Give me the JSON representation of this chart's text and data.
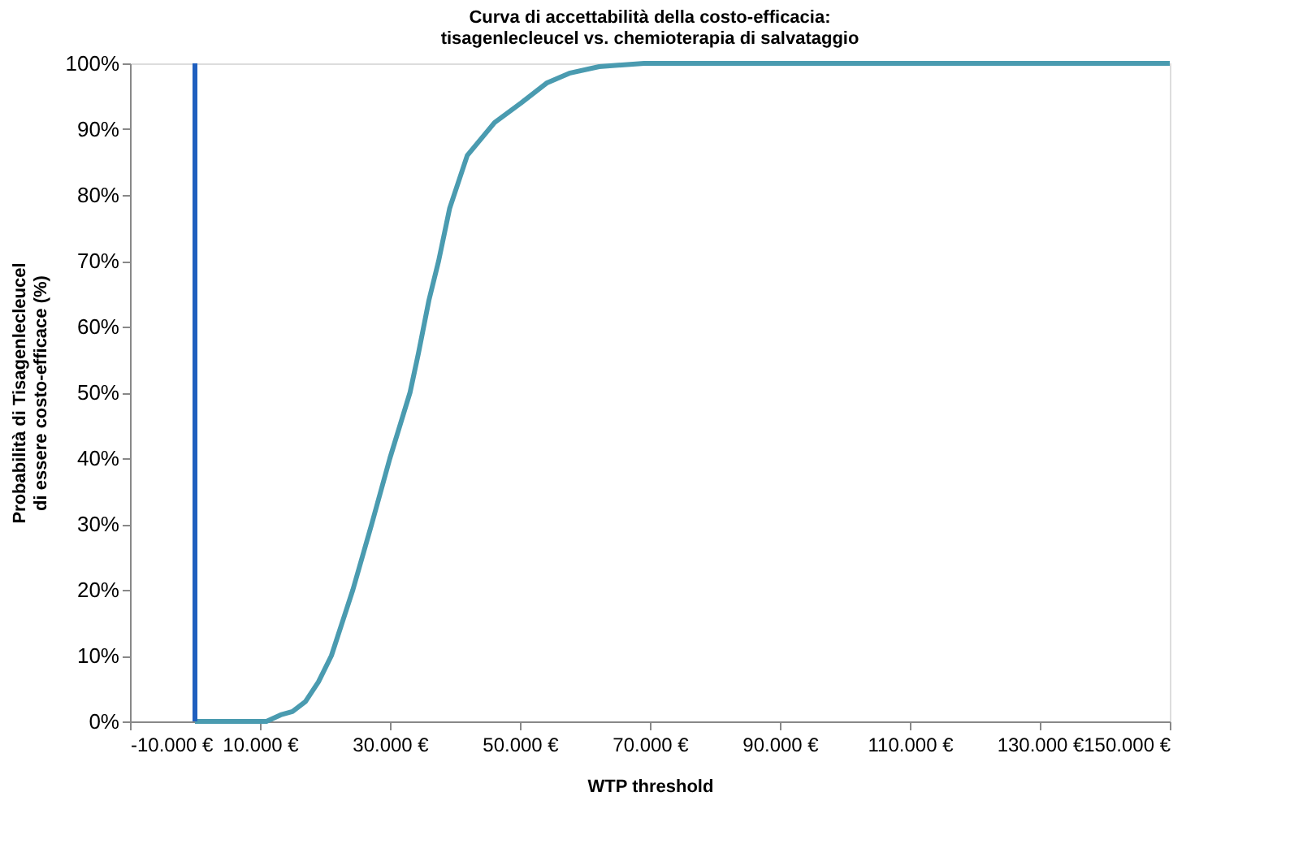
{
  "chart_data": {
    "type": "line",
    "title": [
      "Curva di accettabilità  della costo-efficacia:",
      "tisagenlecleucel vs. chemioterapia di salvataggio"
    ],
    "xlabel": "WTP threshold",
    "ylabel": [
      "Probabilità di Tisagenlecleucel",
      "di essere costo-efficace  (%)"
    ],
    "x": [
      0,
      11000,
      13200,
      15000,
      17000,
      19000,
      21000,
      24300,
      27200,
      30000,
      33100,
      34400,
      36000,
      37500,
      39200,
      41900,
      46100,
      50200,
      54100,
      57600,
      62200,
      69100,
      150000
    ],
    "series": [
      {
        "color": "#4a9bb0",
        "values": [
          0,
          0,
          1,
          1.5,
          3,
          6,
          10,
          20,
          30,
          40,
          50,
          56,
          64,
          70,
          78,
          86,
          91,
          94,
          97,
          98.5,
          99.5,
          100,
          100
        ]
      }
    ],
    "xlim": [
      -10000,
      150000
    ],
    "xticks": [
      {
        "value": -10000,
        "label": "-10.000 €"
      },
      {
        "value": 10000,
        "label": "10.000 €"
      },
      {
        "value": 30000,
        "label": "30.000 €"
      },
      {
        "value": 50000,
        "label": "50.000 €"
      },
      {
        "value": 70000,
        "label": "70.000 €"
      },
      {
        "value": 90000,
        "label": "90.000 €"
      },
      {
        "value": 110000,
        "label": "110.000 €"
      },
      {
        "value": 130000,
        "label": "130.000 €"
      },
      {
        "value": 150000,
        "label": "150.000 €"
      }
    ],
    "ylim": [
      0,
      100
    ],
    "yticks": [
      {
        "value": 0,
        "label": "0%"
      },
      {
        "value": 10,
        "label": "10%"
      },
      {
        "value": 20,
        "label": "20%"
      },
      {
        "value": 30,
        "label": "30%"
      },
      {
        "value": 40,
        "label": "40%"
      },
      {
        "value": 50,
        "label": "50%"
      },
      {
        "value": 60,
        "label": "60%"
      },
      {
        "value": 70,
        "label": "70%"
      },
      {
        "value": 80,
        "label": "80%"
      },
      {
        "value": 90,
        "label": "90%"
      },
      {
        "value": 100,
        "label": "100%"
      }
    ],
    "ref_lines": [
      {
        "axis": "x",
        "value": 0,
        "label": null,
        "color": "#1f5fbf"
      }
    ],
    "grid": false,
    "marker": "none",
    "line_style": "solid"
  }
}
